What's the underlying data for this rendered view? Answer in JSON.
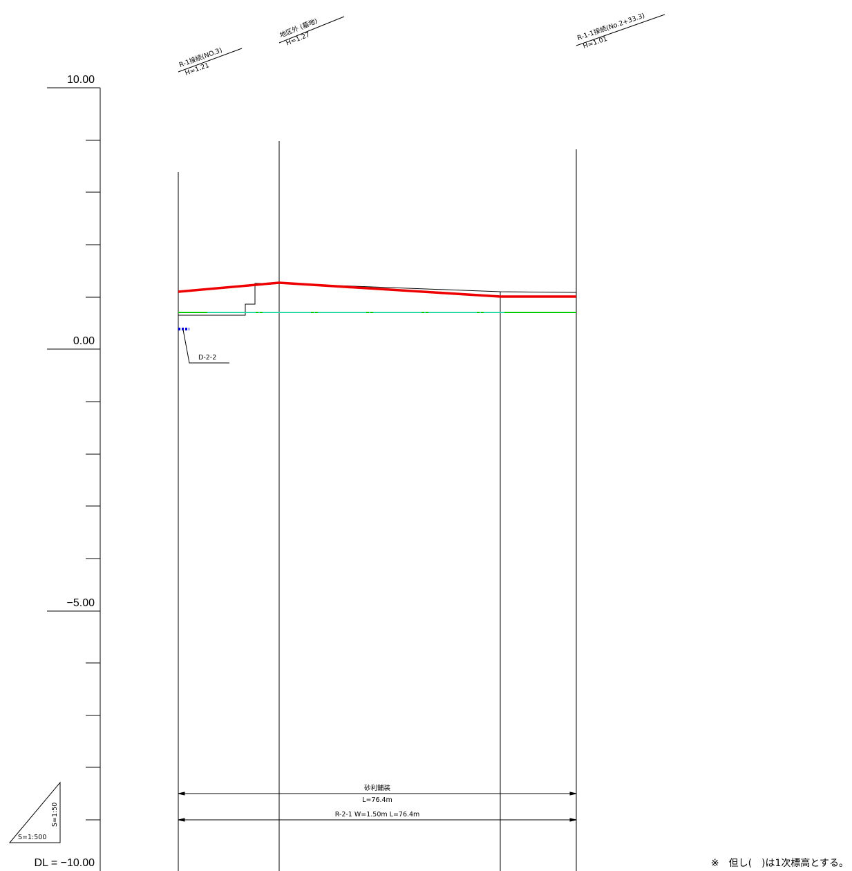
{
  "scale_axis": {
    "labels": [
      "10.00",
      "0.00",
      "−5.00"
    ],
    "datum_label": "DL = −10.00"
  },
  "station_labels": [
    {
      "name": "R-1接続(NO.3)",
      "elevation": "H=1.21"
    },
    {
      "name": "地区外 (墓地)",
      "elevation": "H=1.27"
    },
    {
      "name": "R-1-1接続(No.2+33.3)",
      "elevation": "H=1.01"
    }
  ],
  "drain_label": "D-2-2",
  "pavement": {
    "type": "砂利舗装",
    "length": "L=76.4m",
    "route": "R-2-1 W=1.50m L=76.4m"
  },
  "scale_triangle": {
    "horizontal": "S=1:500",
    "vertical": "S=1:50"
  },
  "footnote": "※　但し(　)は1次標高とする。",
  "colors": {
    "plan_line": "#ee0000",
    "ground_line": "#00cc00",
    "water_line": "#33dddd",
    "drain_marker": "#0000dd"
  }
}
